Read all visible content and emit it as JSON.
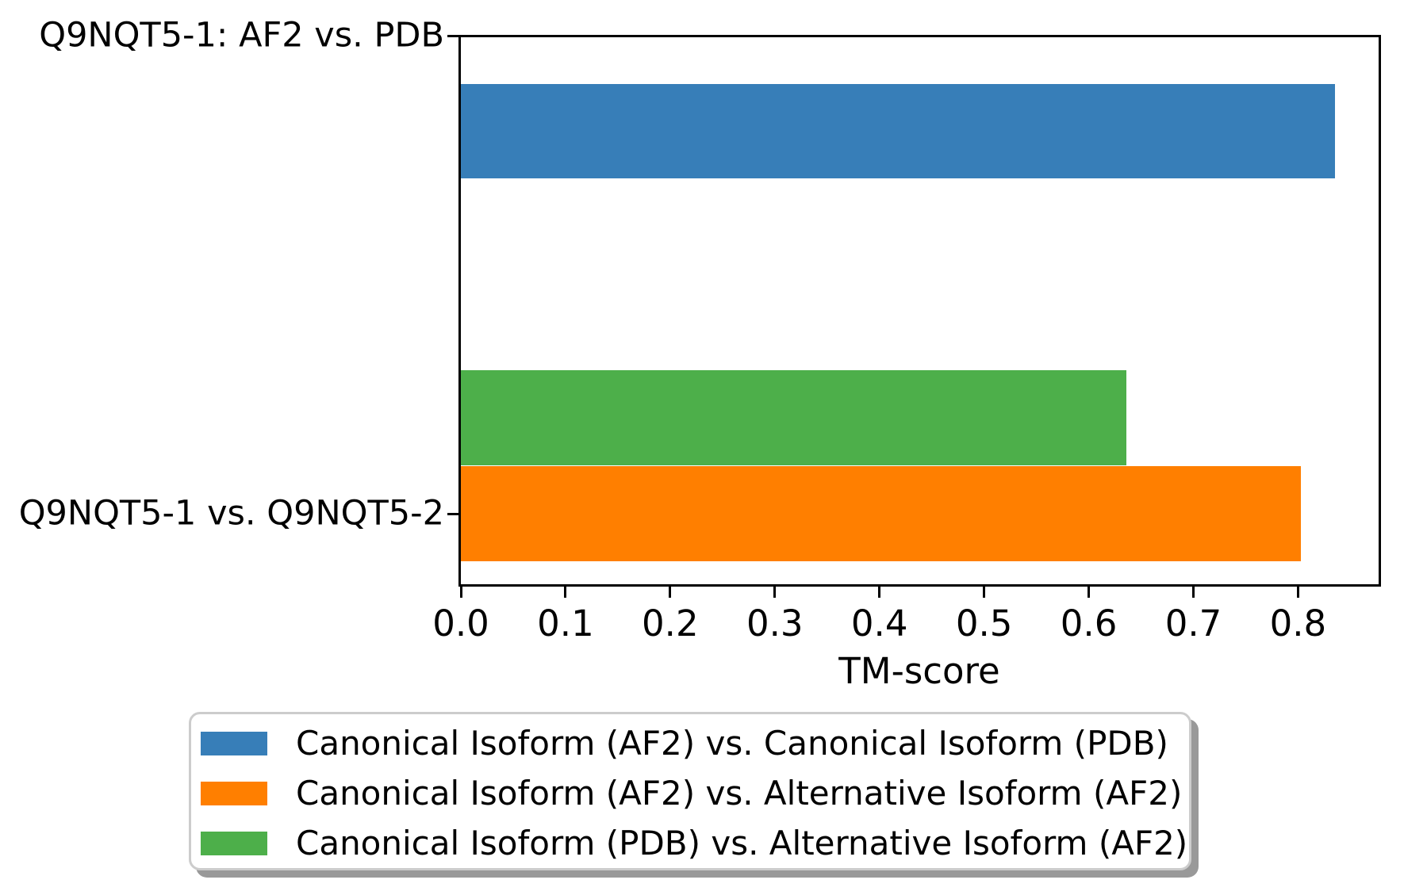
{
  "figure": {
    "background": "#ffffff"
  },
  "chart_data": {
    "type": "bar",
    "orientation": "horizontal",
    "title": "",
    "xlabel": "TM-score",
    "ylabel": "",
    "categories": [
      "Q9NQT5-1: AF2 vs. PDB",
      "Q9NQT5-1 vs. Q9NQT5-2"
    ],
    "series": [
      {
        "name": "Canonical Isoform (AF2) vs. Canonical Isoform (PDB)",
        "color": "#377eb8",
        "values": [
          0.835,
          null
        ]
      },
      {
        "name": "Canonical Isoform (AF2) vs. Alternative Isoform (AF2)",
        "color": "#ff7f00",
        "values": [
          null,
          0.803
        ]
      },
      {
        "name": "Canonical Isoform (PDB) vs. Alternative Isoform (AF2)",
        "color": "#4daf4a",
        "values": [
          null,
          0.636
        ]
      }
    ],
    "xlim": [
      0,
      0.877
    ],
    "xticks": [
      0.0,
      0.1,
      0.2,
      0.3,
      0.4,
      0.5,
      0.6,
      0.7,
      0.8
    ],
    "xtick_labels": [
      "0.0",
      "0.1",
      "0.2",
      "0.3",
      "0.4",
      "0.5",
      "0.6",
      "0.7",
      "0.8"
    ],
    "grid": false,
    "legend_position": "below-axes",
    "spine_color": "#000000",
    "text_color": "#000000"
  }
}
